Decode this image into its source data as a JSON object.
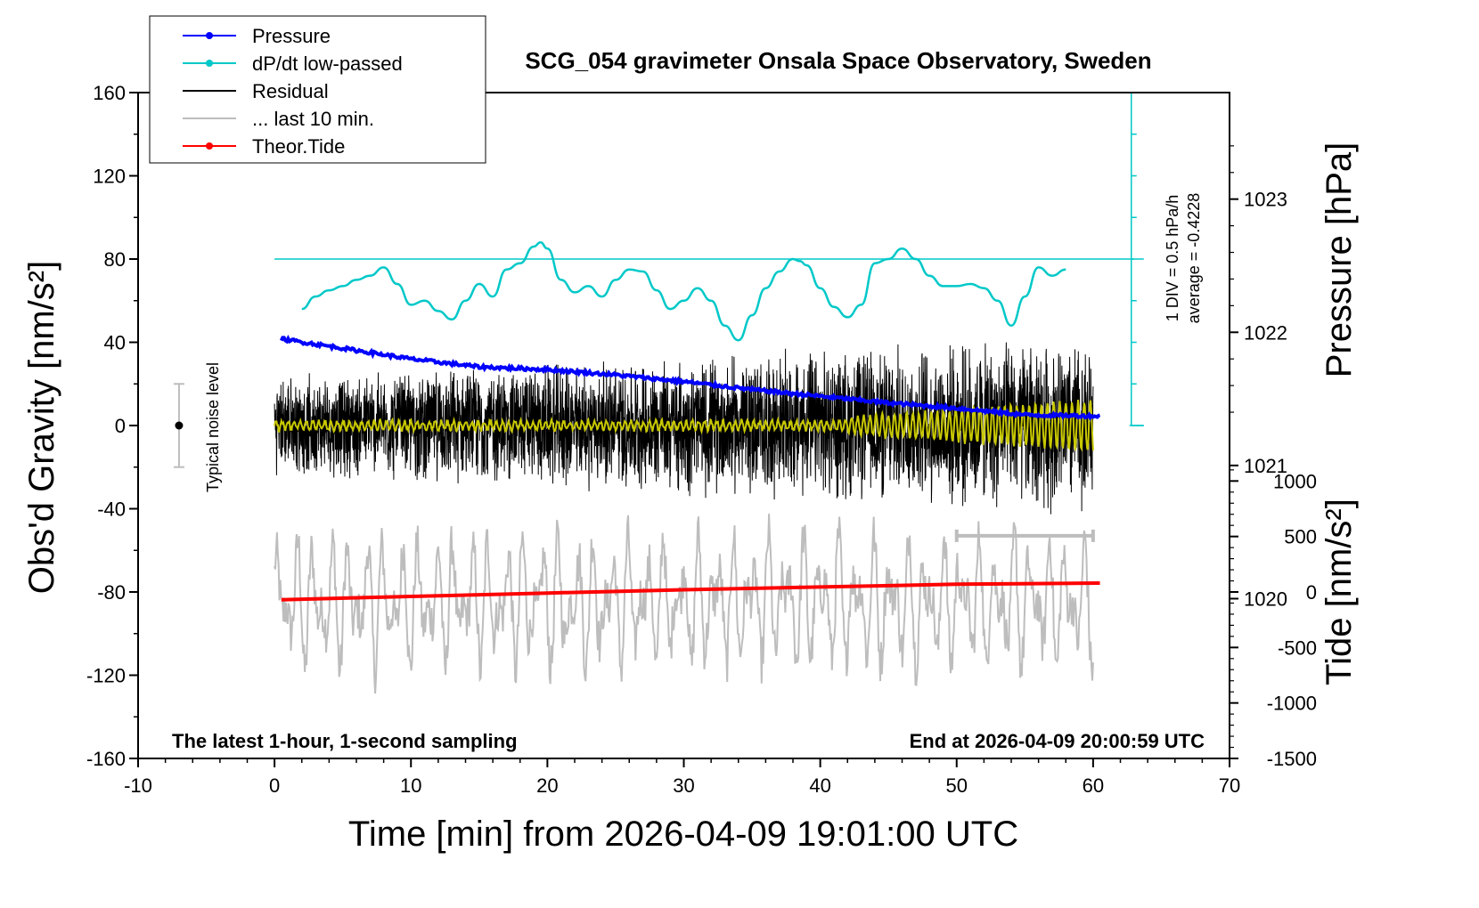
{
  "chart_data": {
    "type": "line",
    "title": "SCG_054 gravimeter Onsala Space Observatory, Sweden",
    "xlabel": "Time [min] from 2026-04-09 19:01:00 UTC",
    "ylabel": "Obs'd Gravity [nm/s²]",
    "y2label": "Pressure [hPa]",
    "y3label": "Tide [nm/s²]",
    "xlim": [
      -10,
      70
    ],
    "ylim": [
      -160,
      160
    ],
    "pressure_lim": [
      1018.8,
      1023.8
    ],
    "tide_lim": [
      -1500,
      1500
    ],
    "x_ticks": [
      "-10",
      "0",
      "10",
      "20",
      "30",
      "40",
      "50",
      "60",
      "70"
    ],
    "y_ticks": [
      "-160",
      "-120",
      "-80",
      "-40",
      "0",
      "40",
      "80",
      "120",
      "160"
    ],
    "pressure_ticks": [
      "1020",
      "1021",
      "1022",
      "1023"
    ],
    "tide_ticks": [
      "-1500",
      "-1000",
      "-500",
      "0",
      "500",
      "1000"
    ],
    "grid": false,
    "legend_position": "top-left",
    "legend": [
      {
        "label": "Pressure",
        "color": "#0000ff",
        "marker": true
      },
      {
        "label": "dP/dt low-passed",
        "color": "#00c8c8",
        "marker": true
      },
      {
        "label": "Residual",
        "color": "#000000",
        "marker": false
      },
      {
        "label": "... last 10 min.",
        "color": "#bdbdbd",
        "marker": false
      },
      {
        "label": "Theor.Tide",
        "color": "#ff0000",
        "marker": true
      }
    ],
    "series": [
      {
        "name": "Pressure",
        "axis": "pressure",
        "color": "#0000ff",
        "x": [
          0.5,
          5,
          10,
          15,
          20,
          25,
          30,
          35,
          40,
          45,
          50,
          55,
          60.5
        ],
        "values": [
          1021.95,
          1021.88,
          1021.8,
          1021.74,
          1021.72,
          1021.68,
          1021.63,
          1021.57,
          1021.52,
          1021.47,
          1021.43,
          1021.38,
          1021.37
        ]
      },
      {
        "name": "dP/dt low-passed",
        "axis": "gravity",
        "color": "#00c8c8",
        "x": [
          2,
          3,
          4,
          5,
          6,
          7,
          8,
          9,
          10,
          11,
          12,
          13,
          14,
          15,
          16,
          17,
          18,
          19,
          19.5,
          20,
          21,
          22,
          23,
          24,
          25,
          26,
          27,
          28,
          29,
          30,
          31,
          32,
          33,
          34,
          35,
          36,
          37,
          38,
          38.5,
          39,
          40,
          41,
          42,
          43,
          44,
          45,
          46,
          47,
          48,
          49,
          50,
          51,
          52,
          53,
          54,
          55,
          56,
          57,
          58
        ],
        "values": [
          56,
          62,
          65,
          67,
          70,
          72,
          76,
          68,
          58,
          60,
          55,
          51,
          60,
          68,
          62,
          75,
          78,
          86,
          88,
          85,
          70,
          64,
          67,
          62,
          70,
          75,
          74,
          65,
          56,
          60,
          66,
          60,
          48,
          41,
          53,
          66,
          74,
          80,
          79,
          77,
          66,
          57,
          52,
          58,
          78,
          80,
          85,
          80,
          72,
          67,
          67,
          68,
          66,
          60,
          48,
          62,
          76,
          72,
          75
        ]
      },
      {
        "name": "Residual",
        "axis": "gravity",
        "color": "#000000",
        "x_range": [
          0,
          60
        ],
        "amplitude_start": 25,
        "amplitude_end": 45
      },
      {
        "name": "... last 10 min.",
        "axis": "gravity",
        "color": "#bdbdbd",
        "x_range": [
          0,
          60
        ]
      },
      {
        "name": "Theor.Tide",
        "axis": "tide",
        "color": "#ff0000",
        "x": [
          0.5,
          10,
          20,
          30,
          40,
          50,
          60.5
        ],
        "values": [
          -70,
          -40,
          -10,
          20,
          45,
          70,
          80
        ]
      }
    ],
    "reference_line": {
      "axis": "gravity",
      "value": 80,
      "color": "#00c8c8"
    },
    "dpdt_scale": {
      "label": "1 DIV = 0.5 hPa/h",
      "average": "average = -0.4228"
    },
    "noise_label": "Typical noise level",
    "noise_bar": {
      "x": -7,
      "center": 0,
      "half_range": 20
    },
    "last10_marker": {
      "x_start": 50,
      "x_end": 60,
      "y": -53
    },
    "annotation_left": "The latest 1-hour, 1-second sampling",
    "annotation_right": "End at 2026-04-09 20:00:59 UTC"
  }
}
